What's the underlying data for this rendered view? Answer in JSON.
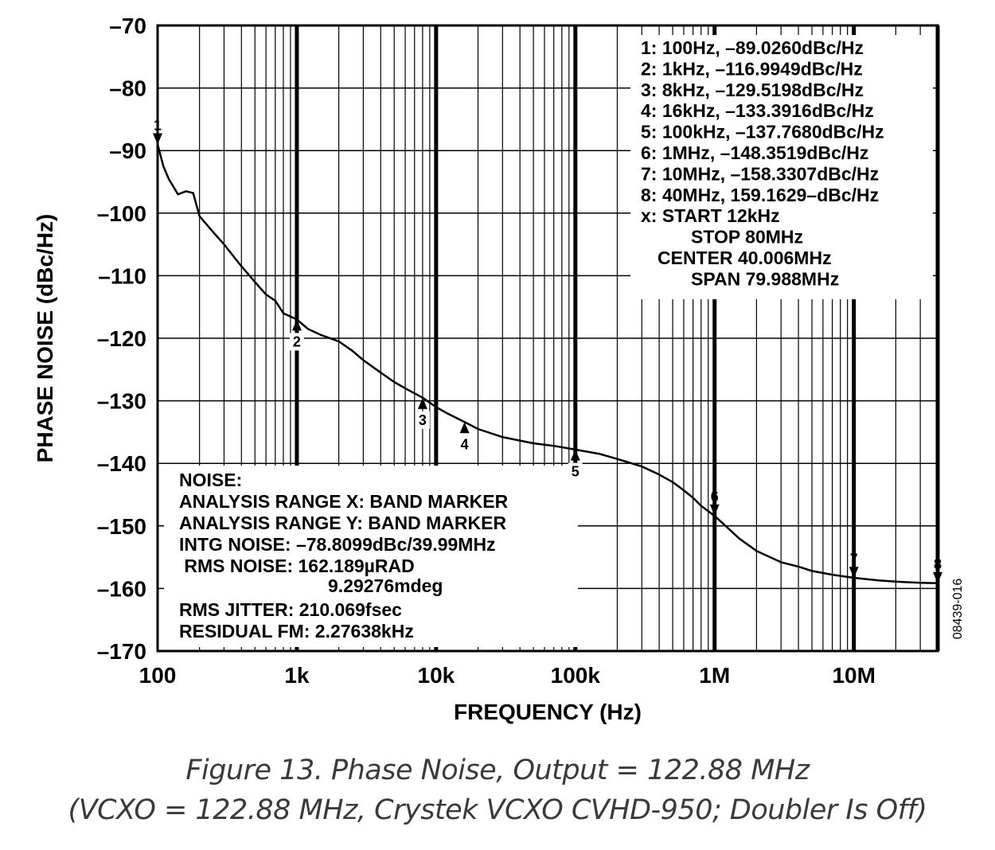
{
  "chart_data": {
    "type": "line",
    "xlabel": "FREQUENCY (Hz)",
    "ylabel": "PHASE NOISE (dBc/Hz)",
    "x_scale": "log",
    "xlim": [
      100,
      40000000
    ],
    "ylim": [
      -170,
      -70
    ],
    "grid": true,
    "x_ticks": [
      {
        "value": 100,
        "label": "100"
      },
      {
        "value": 1000,
        "label": "1k"
      },
      {
        "value": 10000,
        "label": "10k"
      },
      {
        "value": 100000,
        "label": "100k"
      },
      {
        "value": 1000000,
        "label": "1M"
      },
      {
        "value": 10000000,
        "label": "10M"
      }
    ],
    "y_ticks": [
      {
        "value": -70,
        "label": "–70"
      },
      {
        "value": -80,
        "label": "–80"
      },
      {
        "value": -90,
        "label": "–90"
      },
      {
        "value": -100,
        "label": "–100"
      },
      {
        "value": -110,
        "label": "–110"
      },
      {
        "value": -120,
        "label": "–120"
      },
      {
        "value": -130,
        "label": "–130"
      },
      {
        "value": -140,
        "label": "–140"
      },
      {
        "value": -150,
        "label": "–150"
      },
      {
        "value": -160,
        "label": "–160"
      },
      {
        "value": -170,
        "label": "–170"
      }
    ],
    "series": [
      {
        "x": [
          100,
          110,
          120,
          140,
          160,
          180,
          200,
          250,
          300,
          400,
          500,
          600,
          700,
          800,
          1000,
          1200,
          1500,
          2000,
          2500,
          3000,
          4000,
          5000,
          6000,
          8000,
          10000,
          12000,
          16000,
          20000,
          30000,
          50000,
          70000,
          100000,
          150000,
          200000,
          300000,
          400000,
          500000,
          600000,
          700000,
          800000,
          1000000,
          1200000,
          1500000,
          2000000,
          3000000,
          4000000,
          5000000,
          7000000,
          10000000,
          15000000,
          20000000,
          30000000,
          40000000
        ],
        "values": [
          -89.0,
          -92.5,
          -94.5,
          -97.0,
          -96.5,
          -96.8,
          -100.5,
          -103.0,
          -105.0,
          -108.5,
          -111.0,
          -113.0,
          -114.0,
          -116.0,
          -117.0,
          -118.5,
          -119.5,
          -120.5,
          -122.0,
          -123.5,
          -125.5,
          -127.0,
          -128.0,
          -129.5,
          -131.0,
          -132.0,
          -133.4,
          -134.5,
          -135.8,
          -136.8,
          -137.2,
          -137.8,
          -138.5,
          -139.3,
          -140.5,
          -141.8,
          -143.0,
          -144.3,
          -145.5,
          -146.8,
          -148.4,
          -150.0,
          -152.0,
          -154.0,
          -155.8,
          -156.5,
          -157.2,
          -157.8,
          -158.3,
          -158.7,
          -158.9,
          -159.1,
          -159.16
        ]
      }
    ],
    "markers": [
      {
        "id": "1",
        "x": 100,
        "y": -89.026,
        "side": "above"
      },
      {
        "id": "2",
        "x": 1000,
        "y": -116.9949,
        "side": "below"
      },
      {
        "id": "3",
        "x": 8000,
        "y": -129.5198,
        "side": "below"
      },
      {
        "id": "4",
        "x": 16000,
        "y": -133.3916,
        "side": "below"
      },
      {
        "id": "5",
        "x": 100000,
        "y": -137.768,
        "side": "below"
      },
      {
        "id": "6",
        "x": 1000000,
        "y": -148.3519,
        "side": "above"
      },
      {
        "id": "7",
        "x": 10000000,
        "y": -158.3307,
        "side": "above"
      },
      {
        "id": "8",
        "x": 40000000,
        "y": -159.1629,
        "side": "above"
      }
    ],
    "band_lines_x": [
      1000,
      10000,
      100000,
      1000000,
      10000000,
      40000000
    ],
    "marker_box": [
      "1: 100Hz, –89.0260dBc/Hz",
      "2: 1kHz, –116.9949dBc/Hz",
      "3: 8kHz, –129.5198dBc/Hz",
      "4: 16kHz, –133.3916dBc/Hz",
      "5: 100kHz, –137.7680dBc/Hz",
      "6: 1MHz, –148.3519dBc/Hz",
      "7: 10MHz, –158.3307dBc/Hz",
      "8: 40MHz, 159.1629–dBc/Hz",
      "x:    START 12kHz",
      "STOP 80MHz",
      "CENTER 40.006MHz",
      "SPAN 79.988MHz"
    ],
    "noise_box": [
      "NOISE:",
      "ANALYSIS RANGE X: BAND MARKER",
      "ANALYSIS RANGE Y: BAND MARKER",
      "INTG NOISE: –78.8099dBc/39.99MHz",
      " RMS NOISE: 162.189µRAD",
      "9.29276mdeg",
      "RMS JITTER: 210.069fsec",
      "RESIDUAL FM: 2.27638kHz"
    ],
    "side_code": "08439-016"
  },
  "caption": {
    "line1": "Figure 13. Phase Noise, Output = 122.88 MHz",
    "line2": "(VCXO = 122.88 MHz, Crystek VCXO CVHD-950; Doubler Is Off)"
  }
}
